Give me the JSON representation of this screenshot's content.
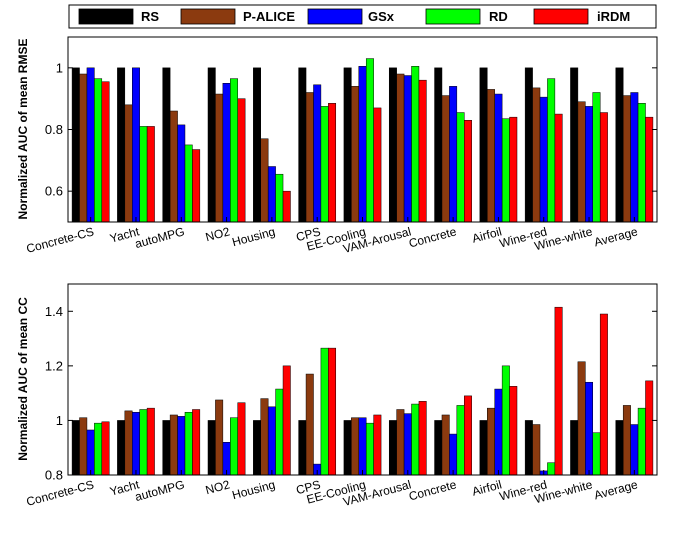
{
  "legend": [
    {
      "name": "RS",
      "color": "#000000"
    },
    {
      "name": "P-ALICE",
      "color": "#8B3A0F"
    },
    {
      "name": "GSx",
      "color": "#0000FF"
    },
    {
      "name": "RD",
      "color": "#00FF00"
    },
    {
      "name": "iRDM",
      "color": "#FF0000"
    }
  ],
  "chart_data": [
    {
      "type": "bar",
      "title": "",
      "ylabel": "Normalized AUC of mean RMSE",
      "xlabel": "",
      "ylim": [
        0.5,
        1.1
      ],
      "yticks": [
        0.6,
        0.8,
        1
      ],
      "ytick_labels": [
        "0.6",
        "0.8",
        "1"
      ],
      "grid": false,
      "categories": [
        "Concrete-CS",
        "Yacht",
        "autoMPG",
        "NO2",
        "Housing",
        "CPS",
        "EE-Cooling",
        "VAM-Arousal",
        "Concrete",
        "Airfoil",
        "Wine-red",
        "Wine-white",
        "Average"
      ],
      "series": [
        {
          "name": "RS",
          "color": "#000000",
          "values": [
            1.0,
            1.0,
            1.0,
            1.0,
            1.0,
            1.0,
            1.0,
            1.0,
            1.0,
            1.0,
            1.0,
            1.0,
            1.0
          ]
        },
        {
          "name": "P-ALICE",
          "color": "#8B3A0F",
          "values": [
            0.98,
            0.88,
            0.86,
            0.915,
            0.77,
            0.92,
            0.94,
            0.98,
            0.91,
            0.93,
            0.935,
            0.89,
            0.91
          ]
        },
        {
          "name": "GSx",
          "color": "#0000FF",
          "values": [
            1.0,
            1.0,
            0.815,
            0.95,
            0.68,
            0.945,
            1.005,
            0.975,
            0.94,
            0.915,
            0.905,
            0.875,
            0.92
          ]
        },
        {
          "name": "RD",
          "color": "#00FF00",
          "values": [
            0.965,
            0.81,
            0.75,
            0.965,
            0.655,
            0.875,
            1.03,
            1.005,
            0.855,
            0.835,
            0.965,
            0.92,
            0.885
          ]
        },
        {
          "name": "iRDM",
          "color": "#FF0000",
          "values": [
            0.955,
            0.81,
            0.735,
            0.9,
            0.6,
            0.885,
            0.87,
            0.96,
            0.83,
            0.84,
            0.85,
            0.855,
            0.84
          ]
        }
      ]
    },
    {
      "type": "bar",
      "title": "",
      "ylabel": "Normalized AUC of mean CC",
      "xlabel": "",
      "ylim": [
        0.8,
        1.5
      ],
      "yticks": [
        0.8,
        1,
        1.2,
        1.4
      ],
      "ytick_labels": [
        "0.8",
        "1",
        "1.2",
        "1.4"
      ],
      "grid": false,
      "categories": [
        "Concrete-CS",
        "Yacht",
        "autoMPG",
        "NO2",
        "Housing",
        "CPS",
        "EE-Cooling",
        "VAM-Arousal",
        "Concrete",
        "Airfoil",
        "Wine-red",
        "Wine-white",
        "Average"
      ],
      "series": [
        {
          "name": "RS",
          "color": "#000000",
          "values": [
            1.0,
            1.0,
            1.0,
            1.0,
            1.0,
            1.0,
            1.0,
            1.0,
            1.0,
            1.0,
            1.0,
            1.0,
            1.0
          ]
        },
        {
          "name": "P-ALICE",
          "color": "#8B3A0F",
          "values": [
            1.01,
            1.035,
            1.02,
            1.075,
            1.08,
            1.17,
            1.01,
            1.04,
            1.02,
            1.045,
            0.985,
            1.215,
            1.055
          ]
        },
        {
          "name": "GSx",
          "color": "#0000FF",
          "values": [
            0.965,
            1.03,
            1.015,
            0.92,
            1.05,
            0.84,
            1.01,
            1.025,
            0.95,
            1.115,
            0.815,
            1.14,
            0.985
          ]
        },
        {
          "name": "RD",
          "color": "#00FF00",
          "values": [
            0.99,
            1.04,
            1.03,
            1.01,
            1.115,
            1.265,
            0.99,
            1.06,
            1.055,
            1.2,
            0.845,
            0.955,
            1.045
          ]
        },
        {
          "name": "iRDM",
          "color": "#FF0000",
          "values": [
            0.995,
            1.045,
            1.04,
            1.065,
            1.2,
            1.265,
            1.02,
            1.07,
            1.09,
            1.125,
            1.415,
            1.39,
            1.145
          ]
        }
      ]
    }
  ]
}
